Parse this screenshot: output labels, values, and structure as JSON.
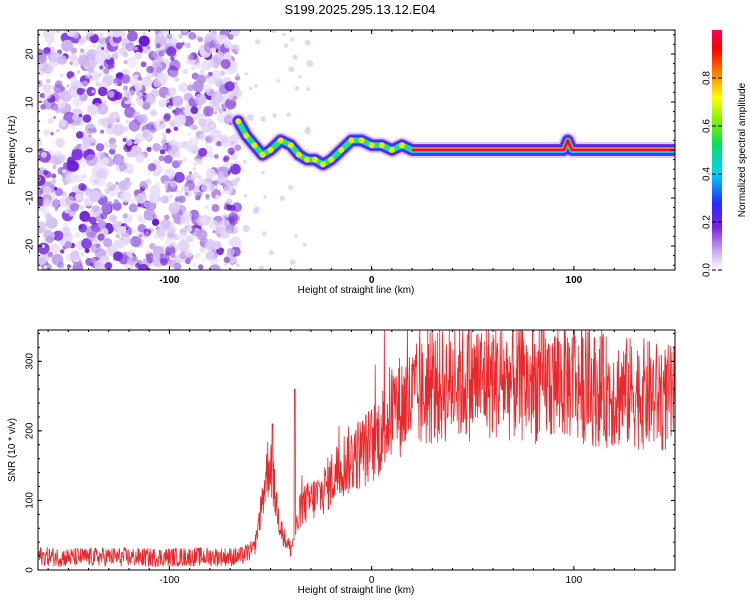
{
  "title": "S199.2025.295.13.12.E04",
  "chart_data": [
    {
      "type": "heatmap",
      "name": "spectrogram",
      "xlabel": "Height of straight line (km)",
      "ylabel": "Frequency (Hz)",
      "xlim": [
        -165,
        150
      ],
      "ylim": [
        -25,
        25
      ],
      "xticks": [
        -100,
        0,
        100
      ],
      "xtick_labels": [
        "-100",
        "0",
        "100"
      ],
      "yticks": [
        -20,
        -10,
        0,
        10,
        20
      ],
      "ytick_labels": [
        "-20",
        "-10",
        "0",
        "10",
        "20"
      ],
      "noise_region_x": [
        -165,
        -66
      ],
      "tone_track": [
        {
          "x": -66,
          "f": 6
        },
        {
          "x": -62,
          "f": 3
        },
        {
          "x": -58,
          "f": 1
        },
        {
          "x": -54,
          "f": -1
        },
        {
          "x": -50,
          "f": 0
        },
        {
          "x": -45,
          "f": 2
        },
        {
          "x": -40,
          "f": 1
        },
        {
          "x": -36,
          "f": -1
        },
        {
          "x": -32,
          "f": -2
        },
        {
          "x": -28,
          "f": -2
        },
        {
          "x": -24,
          "f": -3
        },
        {
          "x": -20,
          "f": -2
        },
        {
          "x": -15,
          "f": 0
        },
        {
          "x": -10,
          "f": 2
        },
        {
          "x": -5,
          "f": 2
        },
        {
          "x": 0,
          "f": 1
        },
        {
          "x": 5,
          "f": 1
        },
        {
          "x": 10,
          "f": 0
        },
        {
          "x": 15,
          "f": 1
        },
        {
          "x": 20,
          "f": 0
        },
        {
          "x": 30,
          "f": 0
        },
        {
          "x": 95,
          "f": 0
        },
        {
          "x": 97,
          "f": 2
        },
        {
          "x": 99,
          "f": 0
        },
        {
          "x": 150,
          "f": 0
        }
      ],
      "colorbar": {
        "label": "Normalized spectral amplitude",
        "range": [
          0,
          1
        ],
        "ticks": [
          0.0,
          0.2,
          0.4,
          0.6,
          0.8
        ],
        "tick_labels": [
          "0.0",
          "0.2",
          "0.4",
          "0.6",
          "0.8"
        ]
      }
    },
    {
      "type": "line",
      "name": "snr",
      "xlabel": "Height of straight line (km)",
      "ylabel": "SNR (10 * v/v)",
      "xlim": [
        -165,
        150
      ],
      "ylim": [
        0,
        345
      ],
      "xticks": [
        -100,
        0,
        100
      ],
      "xtick_labels": [
        "-100",
        "0",
        "100"
      ],
      "yticks": [
        0,
        100,
        200,
        300
      ],
      "ytick_labels": [
        "0",
        "100",
        "200",
        "300"
      ],
      "series": [
        {
          "name": "SNR",
          "color": "#e8282a",
          "x": [
            -165,
            -150,
            -130,
            -110,
            -90,
            -75,
            -65,
            -58,
            -52,
            -50,
            -48,
            -45,
            -42,
            -40,
            -37,
            -35,
            -30,
            -25,
            -20,
            -15,
            -10,
            -5,
            0,
            5,
            10,
            20,
            30,
            40,
            50,
            60,
            70,
            80,
            90,
            95,
            100,
            105,
            110,
            120,
            130,
            140,
            150
          ],
          "y": [
            20,
            18,
            19,
            18,
            19,
            19,
            19,
            30,
            140,
            160,
            110,
            60,
            40,
            30,
            60,
            90,
            100,
            110,
            130,
            150,
            160,
            170,
            180,
            200,
            230,
            245,
            260,
            270,
            270,
            275,
            270,
            265,
            270,
            275,
            270,
            265,
            260,
            255,
            255,
            250,
            245
          ],
          "annotations": [
            {
              "x": -49,
              "y": 210
            },
            {
              "x": -38,
              "y": 260
            },
            {
              "x": 100,
              "y": 100
            },
            {
              "x": 100,
              "y": 345
            }
          ]
        }
      ]
    }
  ]
}
